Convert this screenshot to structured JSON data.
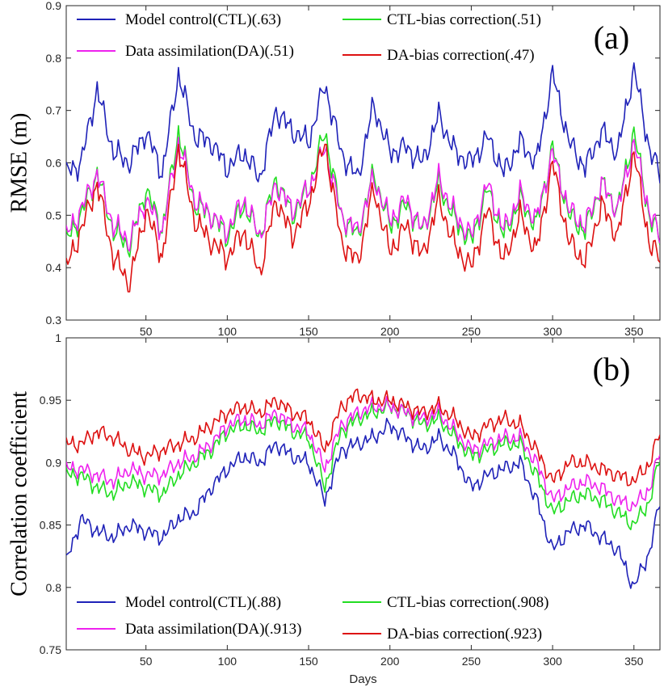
{
  "chart_data": [
    {
      "type": "line",
      "panel_label": "(a)",
      "title": "",
      "xlabel": "",
      "ylabel": "RMSE (m)",
      "xlim": [
        1,
        366
      ],
      "ylim": [
        0.3,
        0.9
      ],
      "xticks": [
        50,
        100,
        150,
        200,
        250,
        300,
        350
      ],
      "yticks": [
        0.3,
        0.4,
        0.5,
        0.6,
        0.7,
        0.8,
        0.9
      ],
      "ytick_labels": [
        "0.3",
        "0.4",
        "0.5",
        "0.6",
        "0.7",
        "0.8",
        "0.9"
      ],
      "grid": false,
      "legend_placement": "top-left",
      "x": [
        1,
        10,
        20,
        30,
        40,
        50,
        60,
        70,
        80,
        90,
        100,
        110,
        120,
        130,
        140,
        150,
        160,
        170,
        180,
        190,
        200,
        210,
        220,
        230,
        240,
        250,
        260,
        270,
        280,
        290,
        300,
        310,
        320,
        330,
        340,
        350,
        360,
        366
      ],
      "series": [
        {
          "name": "Model control(CTL)(.63)",
          "color": "#1f22b8",
          "values": [
            0.58,
            0.6,
            0.74,
            0.62,
            0.6,
            0.66,
            0.58,
            0.77,
            0.65,
            0.64,
            0.59,
            0.62,
            0.57,
            0.7,
            0.66,
            0.64,
            0.75,
            0.62,
            0.57,
            0.71,
            0.62,
            0.63,
            0.6,
            0.69,
            0.62,
            0.6,
            0.65,
            0.58,
            0.64,
            0.6,
            0.77,
            0.64,
            0.59,
            0.66,
            0.62,
            0.78,
            0.62,
            0.58
          ]
        },
        {
          "name": "CTL-bias correction(.51)",
          "color": "#22dd22",
          "values": [
            0.45,
            0.5,
            0.58,
            0.47,
            0.44,
            0.55,
            0.47,
            0.66,
            0.52,
            0.5,
            0.46,
            0.52,
            0.46,
            0.57,
            0.5,
            0.55,
            0.66,
            0.5,
            0.46,
            0.58,
            0.48,
            0.52,
            0.47,
            0.56,
            0.49,
            0.45,
            0.55,
            0.46,
            0.53,
            0.48,
            0.63,
            0.5,
            0.47,
            0.56,
            0.51,
            0.66,
            0.49,
            0.46
          ]
        },
        {
          "name": "Data assimilation(DA)(.51)",
          "color": "#ee22ee",
          "values": [
            0.46,
            0.51,
            0.58,
            0.48,
            0.45,
            0.53,
            0.47,
            0.64,
            0.53,
            0.5,
            0.47,
            0.53,
            0.46,
            0.56,
            0.51,
            0.55,
            0.63,
            0.5,
            0.47,
            0.57,
            0.49,
            0.53,
            0.47,
            0.57,
            0.5,
            0.46,
            0.56,
            0.47,
            0.54,
            0.49,
            0.62,
            0.51,
            0.48,
            0.56,
            0.51,
            0.64,
            0.5,
            0.46
          ]
        },
        {
          "name": "DA-bias correction(.47)",
          "color": "#dd1111",
          "values": [
            0.4,
            0.47,
            0.56,
            0.42,
            0.37,
            0.51,
            0.42,
            0.63,
            0.49,
            0.45,
            0.42,
            0.47,
            0.39,
            0.53,
            0.46,
            0.52,
            0.64,
            0.45,
            0.41,
            0.55,
            0.43,
            0.48,
            0.42,
            0.53,
            0.44,
            0.4,
            0.51,
            0.41,
            0.5,
            0.43,
            0.6,
            0.45,
            0.41,
            0.52,
            0.46,
            0.62,
            0.44,
            0.42
          ]
        }
      ]
    },
    {
      "type": "line",
      "panel_label": "(b)",
      "title": "",
      "xlabel": "Days",
      "ylabel": "Correlation  coefficient",
      "xlim": [
        1,
        366
      ],
      "ylim": [
        0.75,
        1
      ],
      "xticks": [
        50,
        100,
        150,
        200,
        250,
        300,
        350
      ],
      "yticks": [
        0.75,
        0.8,
        0.85,
        0.9,
        0.95,
        1
      ],
      "ytick_labels": [
        "0.75",
        "0.8",
        "0.85",
        "0.9",
        "0.95",
        "1"
      ],
      "grid": false,
      "legend_placement": "bottom-left",
      "x": [
        1,
        10,
        20,
        30,
        40,
        50,
        60,
        70,
        80,
        90,
        100,
        110,
        120,
        130,
        140,
        150,
        160,
        170,
        180,
        190,
        200,
        210,
        220,
        230,
        240,
        250,
        260,
        270,
        280,
        290,
        300,
        310,
        320,
        330,
        340,
        350,
        360,
        366
      ],
      "series": [
        {
          "name": "Model control(CTL)(.88)",
          "color": "#1f22b8",
          "values": [
            0.82,
            0.855,
            0.845,
            0.84,
            0.85,
            0.845,
            0.84,
            0.855,
            0.86,
            0.88,
            0.895,
            0.905,
            0.9,
            0.915,
            0.905,
            0.9,
            0.87,
            0.91,
            0.915,
            0.92,
            0.93,
            0.92,
            0.91,
            0.92,
            0.905,
            0.88,
            0.89,
            0.895,
            0.9,
            0.87,
            0.83,
            0.845,
            0.85,
            0.84,
            0.83,
            0.8,
            0.83,
            0.87
          ]
        },
        {
          "name": "CTL-bias correction(.908)",
          "color": "#22dd22",
          "values": [
            0.89,
            0.89,
            0.88,
            0.875,
            0.885,
            0.88,
            0.875,
            0.89,
            0.9,
            0.91,
            0.925,
            0.93,
            0.925,
            0.935,
            0.925,
            0.92,
            0.88,
            0.925,
            0.935,
            0.94,
            0.945,
            0.94,
            0.93,
            0.935,
            0.92,
            0.905,
            0.91,
            0.915,
            0.915,
            0.89,
            0.86,
            0.87,
            0.875,
            0.87,
            0.86,
            0.85,
            0.87,
            0.905
          ]
        },
        {
          "name": "Data assimilation(DA)(.913)",
          "color": "#ee22ee",
          "values": [
            0.895,
            0.895,
            0.89,
            0.885,
            0.895,
            0.89,
            0.89,
            0.9,
            0.905,
            0.915,
            0.93,
            0.935,
            0.93,
            0.94,
            0.93,
            0.925,
            0.895,
            0.93,
            0.94,
            0.945,
            0.945,
            0.94,
            0.935,
            0.94,
            0.925,
            0.91,
            0.915,
            0.92,
            0.92,
            0.9,
            0.87,
            0.88,
            0.885,
            0.88,
            0.87,
            0.865,
            0.88,
            0.91
          ]
        },
        {
          "name": "DA-bias correction(.923)",
          "color": "#dd1111",
          "values": [
            0.915,
            0.915,
            0.925,
            0.92,
            0.91,
            0.905,
            0.91,
            0.915,
            0.92,
            0.93,
            0.94,
            0.945,
            0.94,
            0.95,
            0.94,
            0.935,
            0.91,
            0.945,
            0.955,
            0.95,
            0.95,
            0.945,
            0.94,
            0.945,
            0.935,
            0.92,
            0.93,
            0.935,
            0.93,
            0.91,
            0.885,
            0.9,
            0.9,
            0.895,
            0.89,
            0.885,
            0.9,
            0.925
          ]
        }
      ]
    }
  ]
}
